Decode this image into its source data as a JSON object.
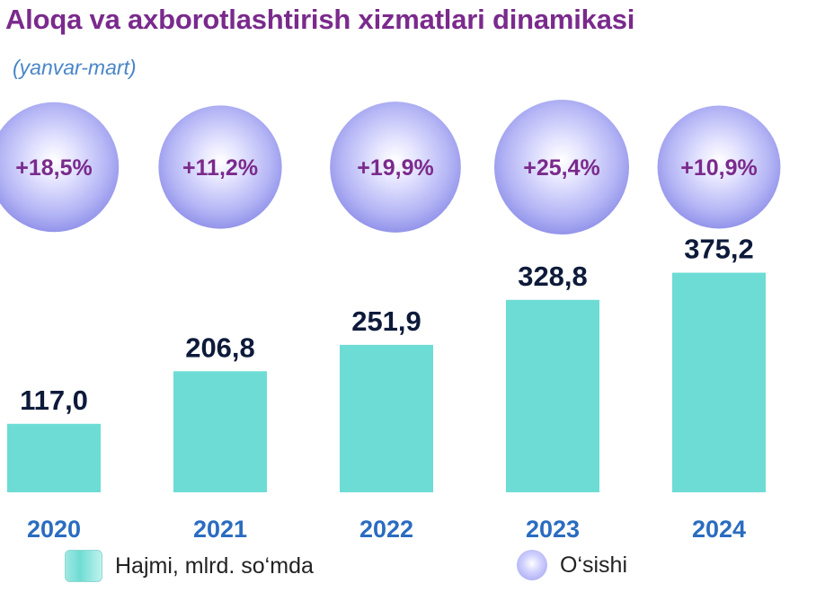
{
  "title": "Aloqa va axborotlashtirish xizmatlari dinamikasi",
  "subtitle": "(yanvar-mart)",
  "colors": {
    "title": "#7a2a8c",
    "subtitle": "#4a86c8",
    "bar": "#6ddcd5",
    "bubble": "#a6a8f2",
    "year_label": "#2a6cc0",
    "value_label": "#0d1a3a"
  },
  "chart_data": {
    "type": "bar",
    "categories": [
      "2020",
      "2021",
      "2022",
      "2023",
      "2024"
    ],
    "series": [
      {
        "name": "Hajmi, mlrd. so‘mda",
        "values": [
          117.0,
          206.8,
          251.9,
          328.8,
          375.2
        ],
        "labels": [
          "117,0",
          "206,8",
          "251,9",
          "328,8",
          "375,2"
        ]
      },
      {
        "name": "O‘sishi",
        "values": [
          18.5,
          11.2,
          19.9,
          25.4,
          10.9
        ],
        "labels": [
          "+18,5%",
          "+11,2%",
          "+19,9%",
          "+25,4%",
          "+10,9%"
        ]
      }
    ],
    "legend": {
      "placement": "bottom"
    },
    "grid": false
  }
}
